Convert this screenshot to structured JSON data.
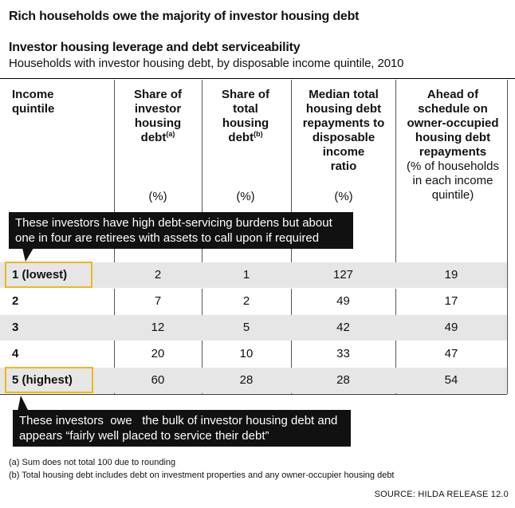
{
  "headline": "Rich households owe the majority of investor housing debt",
  "subtitle": "Investor housing leverage and debt serviceability",
  "description": "Households with investor housing debt, by disposable income quintile, 2010",
  "columns": [
    {
      "lines": [
        "Income",
        "quintile"
      ],
      "sup": "",
      "extra": [],
      "unit": ""
    },
    {
      "lines": [
        "Share of",
        "investor",
        "housing",
        "debt"
      ],
      "sup": "(a)",
      "extra": [],
      "unit": "(%)"
    },
    {
      "lines": [
        "Share of",
        "total",
        "housing",
        "debt"
      ],
      "sup": "(b)",
      "extra": [],
      "unit": "(%)"
    },
    {
      "lines": [
        "Median total",
        "housing debt",
        "repayments to",
        "disposable",
        "income",
        "ratio"
      ],
      "sup": "",
      "extra": [],
      "unit": "(%)"
    },
    {
      "lines": [
        "Ahead of",
        "schedule on",
        "owner-occupied",
        "housing debt",
        "repayments"
      ],
      "sup": "",
      "extra": [
        "(% of households",
        "in each income",
        "quintile)"
      ],
      "unit": ""
    }
  ],
  "rows": [
    {
      "quintile": "1 (lowest)",
      "investor_share": "2",
      "total_share": "1",
      "repay_ratio": "127",
      "ahead": "19"
    },
    {
      "quintile": "2",
      "investor_share": "7",
      "total_share": "2",
      "repay_ratio": "49",
      "ahead": "17"
    },
    {
      "quintile": "3",
      "investor_share": "12",
      "total_share": "5",
      "repay_ratio": "42",
      "ahead": "49"
    },
    {
      "quintile": "4",
      "investor_share": "20",
      "total_share": "10",
      "repay_ratio": "33",
      "ahead": "47"
    },
    {
      "quintile": "5 (highest)",
      "investor_share": "60",
      "total_share": "28",
      "repay_ratio": "28",
      "ahead": "54"
    }
  ],
  "callouts": {
    "top": [
      "These investors have high debt-servicing burdens but about",
      "one in four are retirees with assets to call upon if required"
    ],
    "bottom": [
      "These investors  owe   the bulk of investor housing debt and",
      "appears “fairly well placed to service their debt”"
    ]
  },
  "notes": {
    "a": "(a) Sum does not total 100 due to rounding",
    "b": "(b) Total housing debt includes debt on investment properties and any owner-occupier housing debt"
  },
  "source": "SOURCE: HILDA RELEASE 12.0",
  "colors": {
    "highlight": "#f2b51c",
    "shade": "#e6e6e6",
    "callout": "#111111"
  }
}
